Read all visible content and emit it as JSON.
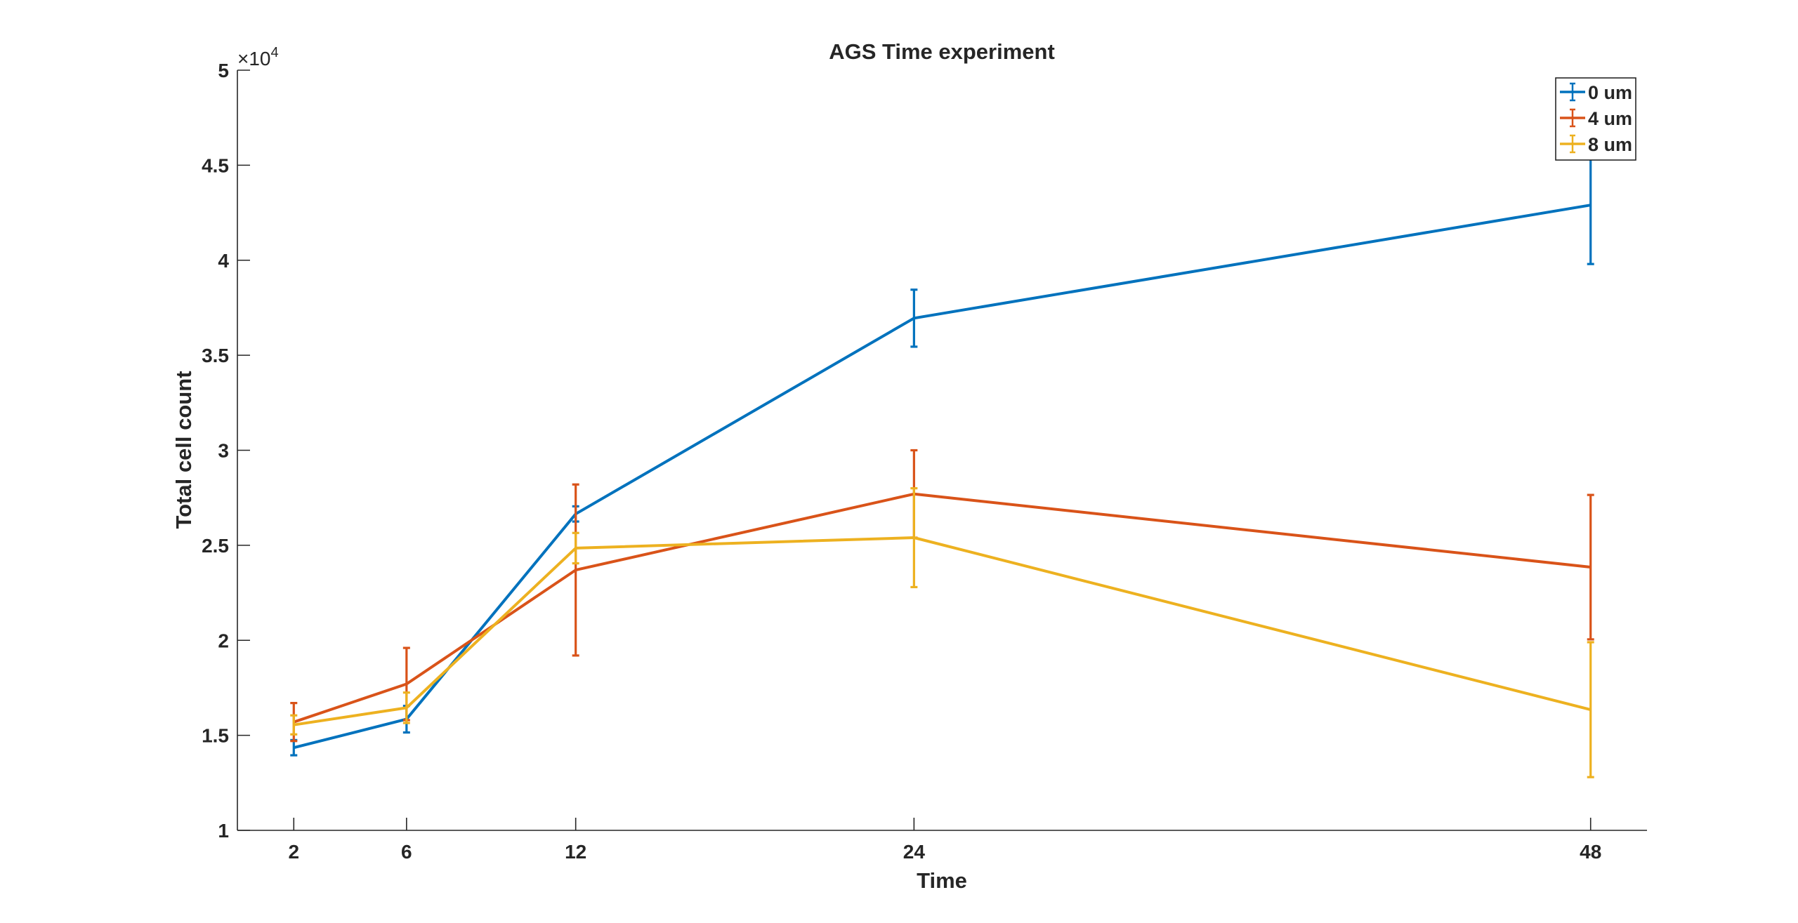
{
  "chart_data": {
    "type": "line",
    "title": "AGS Time experiment",
    "xlabel": "Time",
    "ylabel": "Total cell count",
    "y_exponent_base": "×10",
    "y_exponent_power": "4",
    "x": [
      2,
      6,
      12,
      24,
      48
    ],
    "xlim": [
      0,
      50
    ],
    "ylim": [
      1,
      5
    ],
    "x_ticks": [
      "2",
      "6",
      "12",
      "24",
      "48"
    ],
    "y_ticks": [
      "1",
      "1.5",
      "2",
      "2.5",
      "3",
      "3.5",
      "4",
      "4.5",
      "5"
    ],
    "y_tick_values": [
      1,
      1.5,
      2,
      2.5,
      3,
      3.5,
      4,
      4.5,
      5
    ],
    "grid": false,
    "legend_position": "top-right",
    "series": [
      {
        "name": "0 um",
        "color": "#0072BD",
        "values": [
          1.435,
          1.585,
          2.665,
          3.695,
          4.29
        ],
        "error": [
          0.04,
          0.07,
          0.04,
          0.15,
          0.31
        ]
      },
      {
        "name": "4 um",
        "color": "#D95319",
        "values": [
          1.57,
          1.77,
          2.37,
          2.77,
          2.385
        ],
        "error": [
          0.1,
          0.19,
          0.45,
          0.23,
          0.38
        ]
      },
      {
        "name": "8 um",
        "color": "#EDB120",
        "values": [
          1.555,
          1.645,
          2.485,
          2.54,
          1.635
        ],
        "error": [
          0.05,
          0.08,
          0.08,
          0.26,
          0.355
        ]
      }
    ]
  }
}
